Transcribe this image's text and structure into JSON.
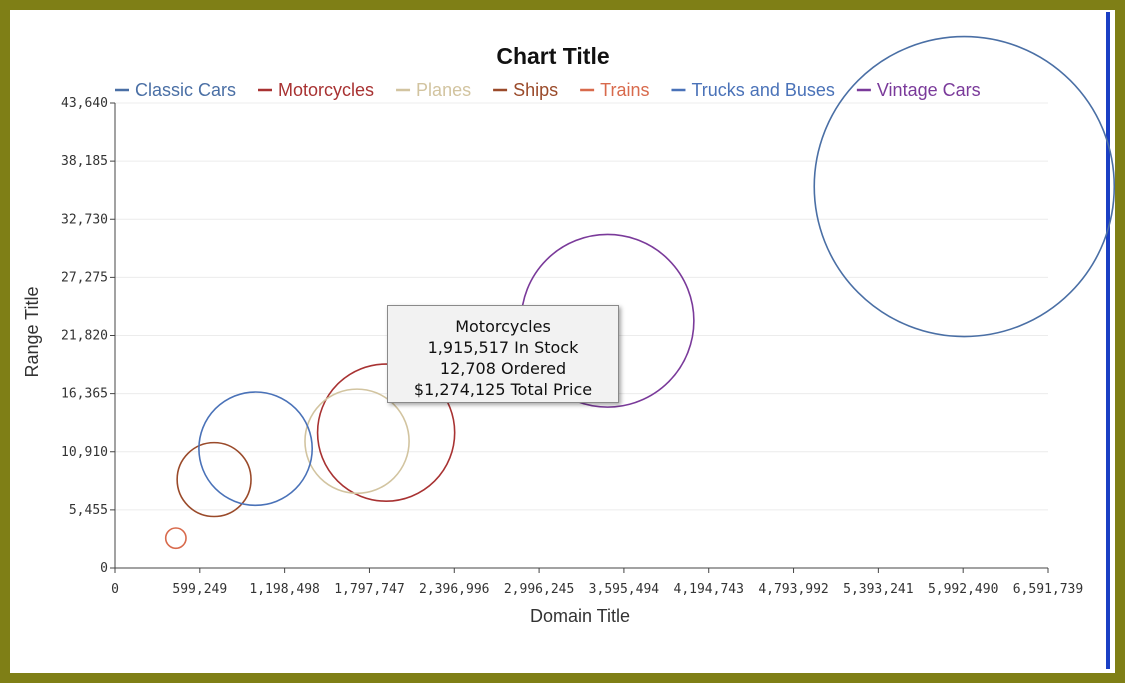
{
  "chart_data": {
    "type": "scatter",
    "title": "Chart Title",
    "xlabel": "Domain Title",
    "ylabel": "Range Title",
    "xlim": [
      0,
      6591739
    ],
    "ylim": [
      0,
      43640
    ],
    "x_ticks": [
      0,
      599249,
      1198498,
      1797747,
      2396996,
      2996245,
      3595494,
      4194743,
      4793992,
      5393241,
      5992490,
      6591739
    ],
    "x_tick_labels": [
      "0",
      "599,249",
      "1,198,498",
      "1,797,747",
      "2,396,996",
      "2,996,245",
      "3,595,494",
      "4,194,743",
      "4,793,992",
      "5,393,241",
      "5,992,490",
      "6,591,739"
    ],
    "y_ticks": [
      0,
      5455,
      10910,
      16365,
      21820,
      27275,
      32730,
      38185,
      43640
    ],
    "y_tick_labels": [
      "0",
      "5,455",
      "10,910",
      "16,365",
      "21,820",
      "27,275",
      "32,730",
      "38,185",
      "43,640"
    ],
    "grid": true,
    "legend_position": "top",
    "series": [
      {
        "name": "Classic Cars",
        "color": "#4a6fa5",
        "x": 6000000,
        "y": 35800,
        "size": 6100000
      },
      {
        "name": "Motorcycles",
        "color": "#a83232",
        "x": 1915517,
        "y": 12708,
        "size": 1274125
      },
      {
        "name": "Planes",
        "color": "#d2c4a0",
        "x": 1710000,
        "y": 11900,
        "size": 735000
      },
      {
        "name": "Ships",
        "color": "#9a4a2a",
        "x": 700000,
        "y": 8300,
        "size": 370000
      },
      {
        "name": "Trains",
        "color": "#d86a4c",
        "x": 430000,
        "y": 2800,
        "size": 28000
      },
      {
        "name": "Trucks and Buses",
        "color": "#4a72b8",
        "x": 993000,
        "y": 11200,
        "size": 870000
      },
      {
        "name": "Vintage Cars",
        "color": "#7a3a9a",
        "x": 3480000,
        "y": 23200,
        "size": 2020000
      }
    ],
    "tooltip": {
      "series": "Motorcycles",
      "lines": [
        "Motorcycles",
        "1,915,517 In Stock",
        "12,708 Ordered",
        "$1,274,125 Total Price"
      ]
    }
  }
}
